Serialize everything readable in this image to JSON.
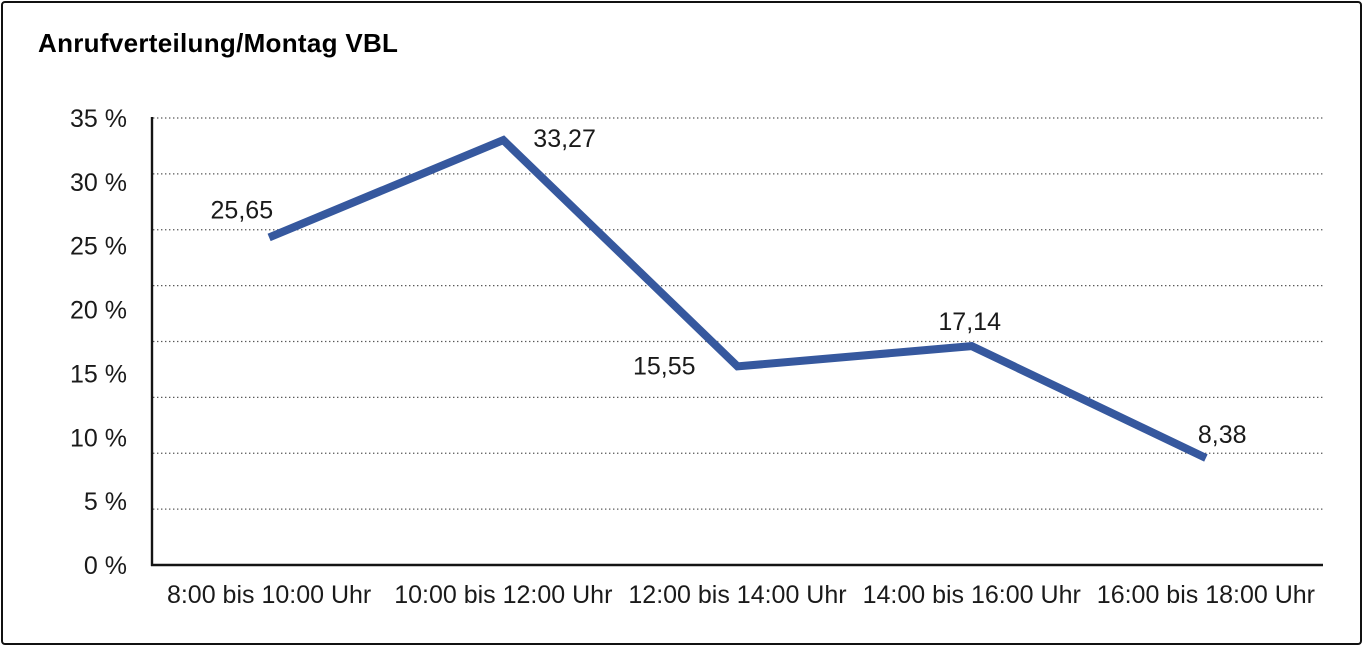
{
  "chart_data": {
    "type": "line",
    "title": "Anrufverteilung/Montag VBL",
    "categories": [
      "8:00 bis 10:00 Uhr",
      "10:00 bis 12:00 Uhr",
      "12:00 bis 14:00 Uhr",
      "14:00 bis 16:00 Uhr",
      "16:00 bis 18:00 Uhr"
    ],
    "values": [
      25.65,
      33.27,
      15.55,
      17.14,
      8.38
    ],
    "value_labels": [
      "25,65",
      "33,27",
      "15,55",
      "17,14",
      "8,38"
    ],
    "unit": "%",
    "xlabel": "",
    "ylabel": "",
    "ylim": [
      0,
      35
    ],
    "y_ticks": [
      {
        "value": 35,
        "label": "35 %"
      },
      {
        "value": 30,
        "label": "30 %"
      },
      {
        "value": 25,
        "label": "25 %"
      },
      {
        "value": 20,
        "label": "20 %"
      },
      {
        "value": 15,
        "label": "15 %"
      },
      {
        "value": 10,
        "label": "10 %"
      },
      {
        "value": 5,
        "label": "5 %"
      },
      {
        "value": 0,
        "label": "0 %"
      }
    ],
    "gridlines": {
      "orientation": "horizontal",
      "style": "dotted",
      "dotted_line_count": 8,
      "color": "#3c3c3c"
    },
    "legend_position": "none",
    "line_color": "#36589E",
    "axis_color": "#141414",
    "text_color": "#1a1a1a"
  }
}
